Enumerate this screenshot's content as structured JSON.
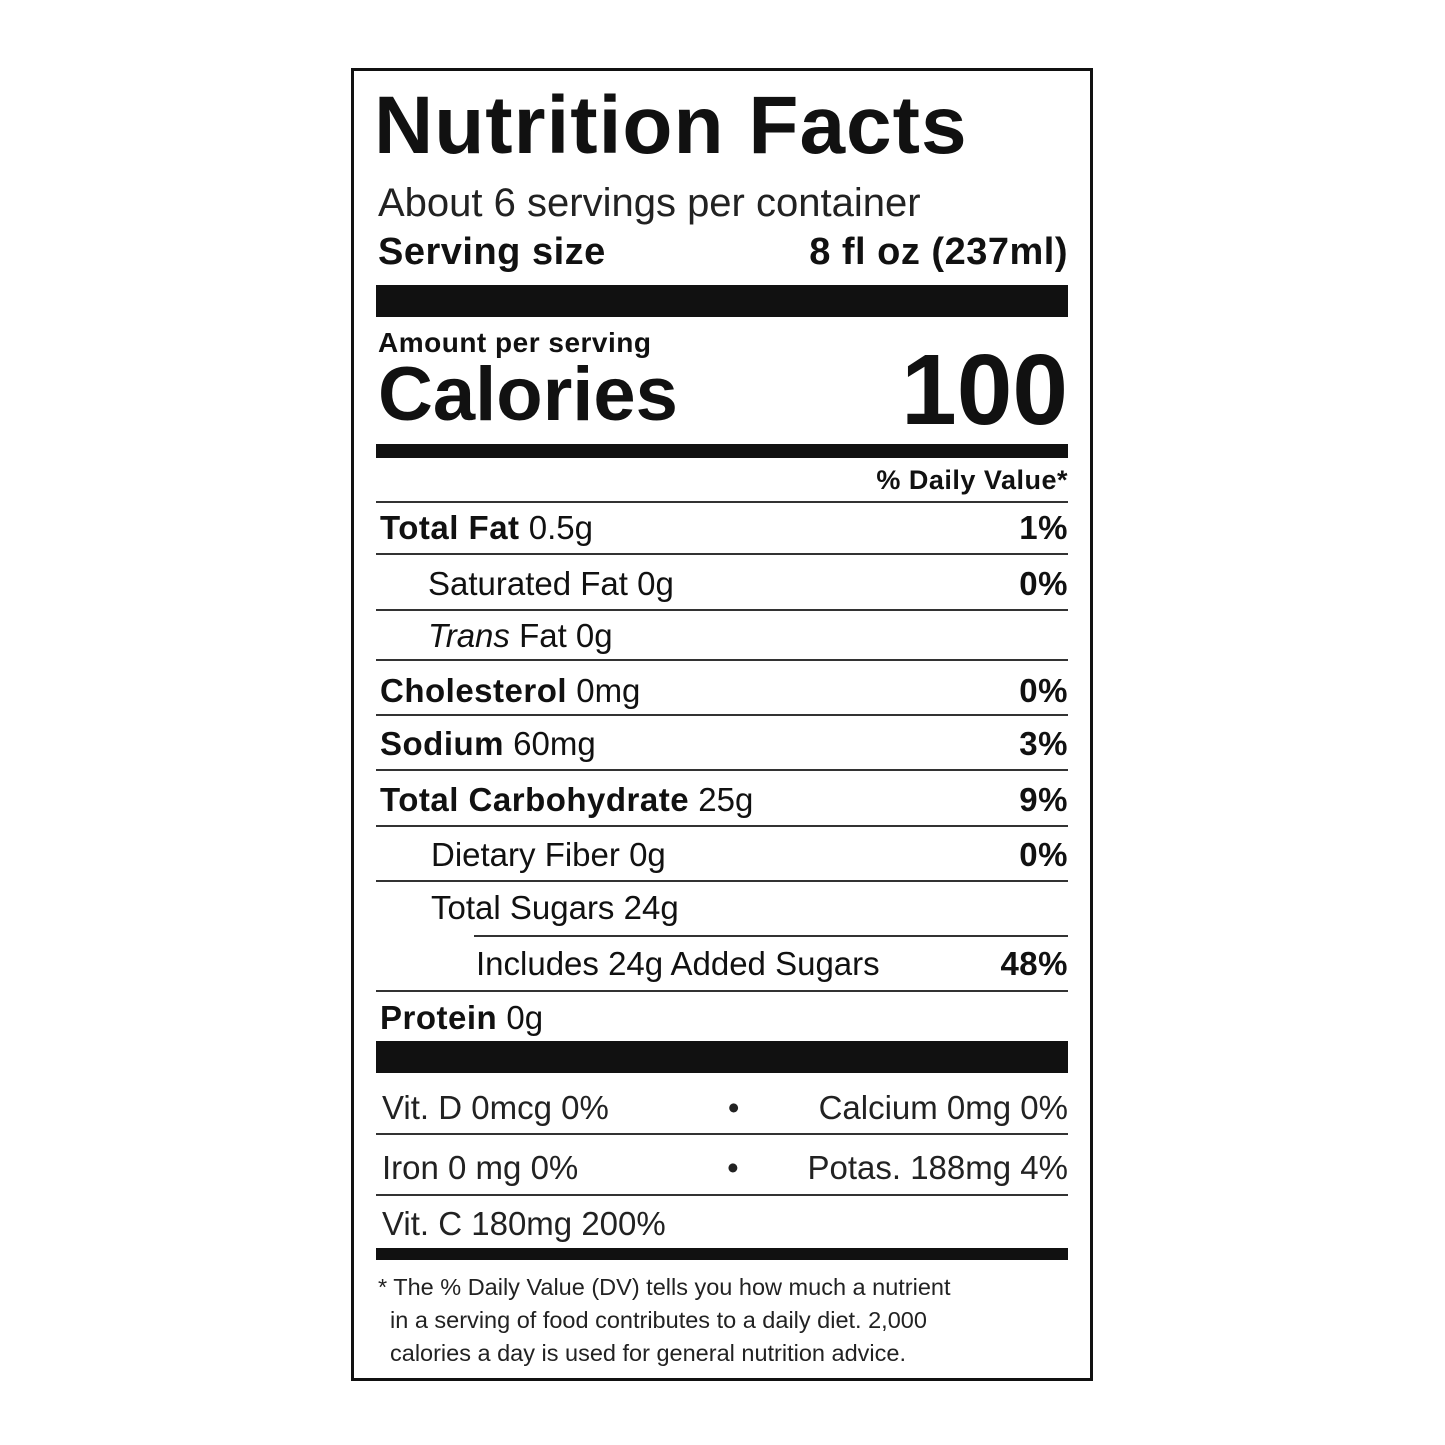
{
  "title": "Nutrition Facts",
  "servings_per_container": "About 6 servings per container",
  "serving_size_label": "Serving size",
  "serving_size_value": "8 fl oz (237ml)",
  "amount_per_serving": "Amount per serving",
  "calories_label": "Calories",
  "calories_value": "100",
  "daily_value_header": "% Daily Value*",
  "nutrients": [
    {
      "name": "Total Fat",
      "amount": "0.5g",
      "dv": "1%"
    },
    {
      "name": "Saturated Fat",
      "amount": "0g",
      "dv": "0%"
    },
    {
      "name": "Trans",
      "suffix": "Fat 0g",
      "dv": ""
    },
    {
      "name": "Cholesterol",
      "amount": "0mg",
      "dv": "0%"
    },
    {
      "name": "Sodium",
      "amount": "60mg",
      "dv": "3%"
    },
    {
      "name": "Total Carbohydrate",
      "amount": "25g",
      "dv": "9%"
    },
    {
      "name": "Dietary Fiber",
      "amount": "0g",
      "dv": "0%"
    },
    {
      "name": "Total Sugars",
      "amount": "24g",
      "dv": ""
    },
    {
      "name": "Includes 24g Added Sugars",
      "amount": "",
      "dv": "48%"
    },
    {
      "name": "Protein",
      "amount": "0g",
      "dv": ""
    }
  ],
  "vitamins": [
    {
      "left": "Vit. D 0mcg 0%",
      "sep": "•",
      "right": "Calcium 0mg 0%"
    },
    {
      "left": "Iron 0 mg 0%",
      "sep": "•",
      "right": "Potas. 188mg 4%"
    },
    {
      "left": "Vit. C 180mg 200%"
    }
  ],
  "footnote_lines": [
    "* The % Daily Value (DV) tells you how much a nutrient",
    "in a serving of food contributes to a daily diet. 2,000",
    "calories a day is used for general nutrition advice."
  ]
}
